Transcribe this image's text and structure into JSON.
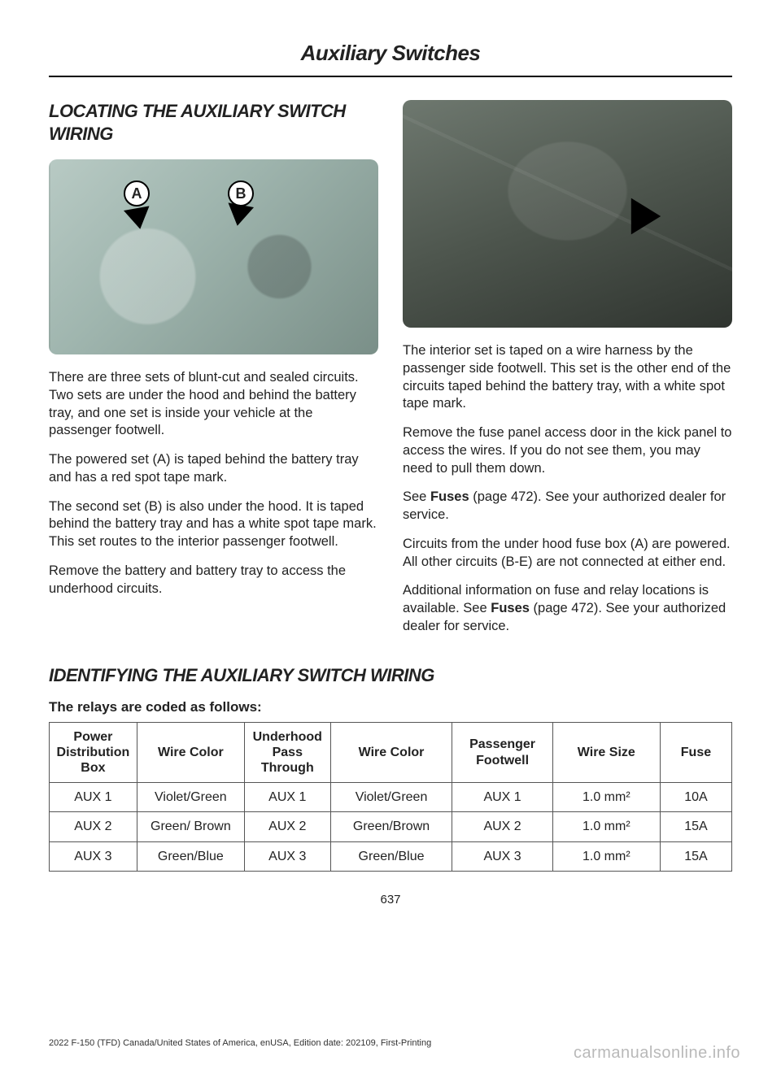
{
  "header": {
    "title": "Auxiliary Switches"
  },
  "section1": {
    "heading": "LOCATING THE AUXILIARY SWITCH WIRING",
    "engine_callouts": {
      "a": "A",
      "b": "B"
    },
    "left_paras": [
      "There are three sets of blunt-cut and sealed circuits. Two sets are under the hood and behind the battery tray, and one set is inside your vehicle at the passenger footwell.",
      "The powered set (A) is taped behind the battery tray and has a red spot tape mark.",
      "The second set (B) is also under the hood. It is taped behind the battery tray and has a white spot tape mark. This set routes to the interior passenger footwell.",
      "Remove the battery and battery tray to access the underhood circuits."
    ],
    "right_paras": [
      "The interior set is taped on a wire harness by the passenger side footwell. This set is the other end of the circuits taped behind the battery tray, with a white spot tape mark.",
      "Remove the fuse panel access door in the kick panel to access the wires. If you do not see them, you may need to pull them down.",
      "See Fuses (page 472).  See your authorized dealer for service.",
      "Circuits from the under hood fuse box (A) are powered. All other circuits (B-E) are not connected at either end.",
      "Additional information on fuse and relay locations is available.  See Fuses (page 472).  See your authorized dealer for service."
    ]
  },
  "section2": {
    "heading": "IDENTIFYING THE AUXILIARY SWITCH WIRING",
    "caption": "The relays are coded as follows:",
    "table": {
      "columns": [
        "Power Distribution Box",
        "Wire Color",
        "Underhood Pass Through",
        "Wire Color",
        "Passenger Footwell",
        "Wire Size",
        "Fuse"
      ],
      "col_widths_pct": [
        12,
        15,
        12,
        17,
        14,
        15,
        10
      ],
      "rows": [
        [
          "AUX 1",
          "Violet/Green",
          "AUX 1",
          "Violet/Green",
          "AUX 1",
          "1.0 mm²",
          "10A"
        ],
        [
          "AUX 2",
          "Green/ Brown",
          "AUX 2",
          "Green/Brown",
          "AUX 2",
          "1.0 mm²",
          "15A"
        ],
        [
          "AUX 3",
          "Green/Blue",
          "AUX 3",
          "Green/Blue",
          "AUX 3",
          "1.0 mm²",
          "15A"
        ]
      ]
    }
  },
  "footer": {
    "page_num": "637",
    "imprint": "2022 F-150 (TFD) Canada/United States of America, enUSA, Edition date: 202109, First-Printing",
    "brand": "carmanualsonline.info"
  },
  "styling": {
    "page_bg": "#ffffff",
    "text_color": "#222222",
    "border_color": "#555555",
    "heading_fontsize_pt": 22,
    "body_fontsize_pt": 16.5,
    "engine_illus_colors": [
      "#b8cac4",
      "#9fb5ae",
      "#7a8f88"
    ],
    "footwell_illus_colors": [
      "#6e786f",
      "#4d554d",
      "#2f342f"
    ]
  }
}
